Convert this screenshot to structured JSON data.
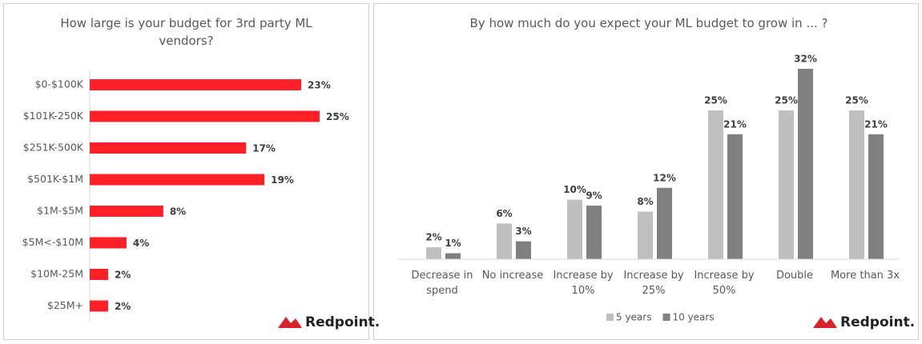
{
  "logo": "Redpoint.",
  "chart_data": [
    {
      "type": "hbar",
      "title": "How large is your budget for 3rd party ML vendors?",
      "categories": [
        "$0-$100K",
        "$101K-250K",
        "$251K-500K",
        "$501K-$1M",
        "$1M-$5M",
        "$5M<-$10M",
        "$10M-25M",
        "$25M+"
      ],
      "values": [
        23,
        25,
        17,
        19,
        8,
        4,
        2,
        2
      ],
      "value_labels": [
        "23%",
        "25%",
        "17%",
        "19%",
        "8%",
        "4%",
        "2%",
        "2%"
      ],
      "color": "#ff1f27",
      "xlim": [
        0,
        25
      ]
    },
    {
      "type": "grouped-bar",
      "title": "By how much do you expect your ML budget to grow in ... ?",
      "categories": [
        "Decrease in spend",
        "No increase",
        "Increase by 10%",
        "Increase by 25%",
        "Increase by 50%",
        "Double",
        "More than 3x"
      ],
      "series": [
        {
          "name": "5 years",
          "color": "#bfbfbf",
          "values": [
            2,
            6,
            10,
            8,
            25,
            25,
            25
          ],
          "value_labels": [
            "2%",
            "6%",
            "10%",
            "8%",
            "25%",
            "25%",
            "25%"
          ]
        },
        {
          "name": "10 years",
          "color": "#808080",
          "values": [
            1,
            3,
            9,
            12,
            21,
            32,
            21
          ],
          "value_labels": [
            "1%",
            "3%",
            "9%",
            "12%",
            "21%",
            "32%",
            "21%"
          ]
        }
      ],
      "ylim": [
        0,
        32
      ],
      "legend": "bottom"
    }
  ]
}
